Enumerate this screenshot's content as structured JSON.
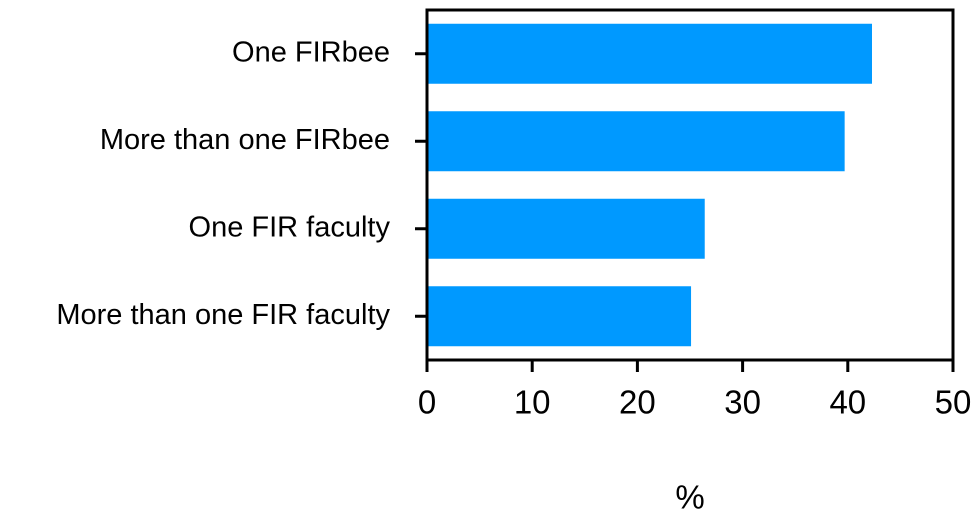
{
  "chart_data": {
    "type": "barh",
    "categories": [
      "One FIRbee",
      "More than one FIRbee",
      "One FIR faculty",
      "More than one FIR faculty"
    ],
    "values": [
      42.3,
      39.7,
      26.4,
      25.1
    ],
    "color": "#0099ff",
    "xlim": [
      0,
      50
    ],
    "xticks": [
      0,
      10,
      20,
      30,
      40,
      50
    ],
    "xlabel": "%"
  }
}
